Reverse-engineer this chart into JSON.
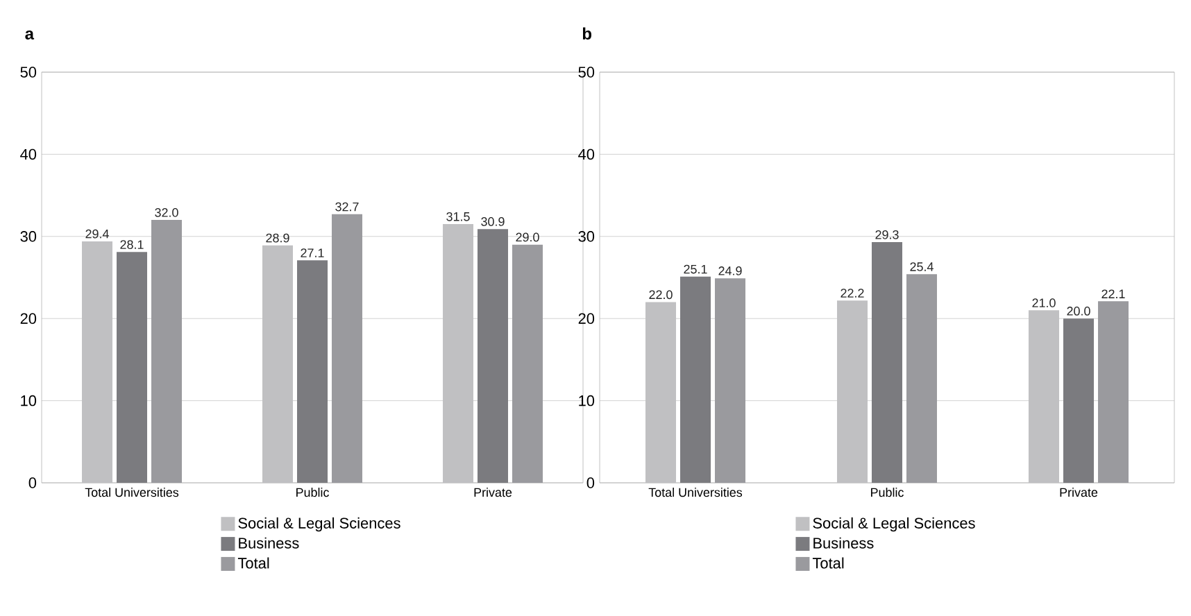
{
  "chart_data": [
    {
      "type": "bar",
      "title": "a",
      "categories": [
        "Total Universities",
        "Public",
        "Private"
      ],
      "series": [
        {
          "name": "Social & Legal Sciences",
          "color": "#c0c0c2",
          "values": [
            29.4,
            28.9,
            31.5
          ],
          "value_labels": [
            "29.4",
            "28.9",
            "31.5"
          ]
        },
        {
          "name": "Business",
          "color": "#7b7b7f",
          "values": [
            28.1,
            27.1,
            30.9
          ],
          "value_labels": [
            "28.1",
            "27.1",
            "30.9"
          ]
        },
        {
          "name": "Total",
          "color": "#9a9a9e",
          "values": [
            32.0,
            32.7,
            29.0
          ],
          "value_labels": [
            "32.0",
            "32.7",
            "29.0"
          ]
        }
      ],
      "ylim": [
        0,
        50
      ],
      "yticks": [
        0,
        10,
        20,
        30,
        40,
        50
      ],
      "grid": "y",
      "legend": "bottom"
    },
    {
      "type": "bar",
      "title": "b",
      "categories": [
        "Total Universities",
        "Public",
        "Private"
      ],
      "series": [
        {
          "name": "Social & Legal Sciences",
          "color": "#c0c0c2",
          "values": [
            22.0,
            22.2,
            21.0
          ],
          "value_labels": [
            "22.0",
            "22.2",
            "21.0"
          ]
        },
        {
          "name": "Business",
          "color": "#7b7b7f",
          "values": [
            25.1,
            29.3,
            20.0
          ],
          "value_labels": [
            "25.1",
            "29.3",
            "20.0"
          ]
        },
        {
          "name": "Total",
          "color": "#9a9a9e",
          "values": [
            24.9,
            25.4,
            22.1
          ],
          "value_labels": [
            "24.9",
            "25.4",
            "22.1"
          ]
        }
      ],
      "ylim": [
        0,
        50
      ],
      "yticks": [
        0,
        10,
        20,
        30,
        40,
        50
      ],
      "grid": "y",
      "legend": "bottom"
    }
  ]
}
